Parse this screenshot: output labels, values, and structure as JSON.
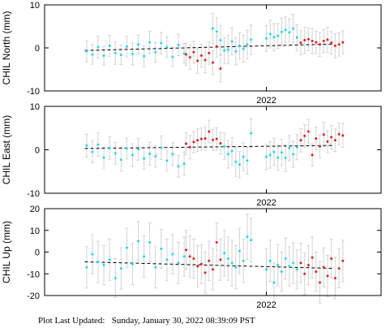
{
  "footer": {
    "label": "Plot Last Updated:",
    "timestamp": "Sunday, January 30, 2022 08:39:09 PST"
  },
  "colors": {
    "cyan": "#22d8ea",
    "red": "#e02020",
    "error_bar": "#d3d3d3",
    "trend": "#000000"
  },
  "chart_data": [
    {
      "type": "scatter",
      "ylabel": "CHIL North (mm)",
      "ylim": [
        -10,
        10
      ],
      "yticks": [
        -10,
        0,
        10
      ],
      "xlim": [
        2021.42,
        2022.3
      ],
      "xticks": [
        2022.0
      ],
      "xtick_labels": [
        "2022"
      ],
      "trend": [
        [
          2021.525,
          -0.6
        ],
        [
          2022.175,
          0.9
        ]
      ],
      "series": [
        {
          "color": "cyan",
          "x": [
            2021.53,
            2021.545,
            2021.56,
            2021.575,
            2021.59,
            2021.605,
            2021.62,
            2021.635,
            2021.65,
            2021.665,
            2021.68,
            2021.695,
            2021.71,
            2021.725,
            2021.74,
            2021.755,
            2021.77,
            2021.785,
            2021.86,
            2021.87,
            2021.88,
            2021.89,
            2021.9,
            2021.91,
            2021.92,
            2021.93,
            2021.94,
            2021.95,
            2021.96,
            2022.0,
            2022.01,
            2022.02,
            2022.03,
            2022.04,
            2022.05,
            2022.06,
            2022.07,
            2022.08
          ],
          "y": [
            -0.8,
            -1.5,
            0.2,
            -1.8,
            0.5,
            -1.2,
            -1.6,
            0.3,
            -1.4,
            0.8,
            -1.9,
            1.3,
            -1.0,
            1.1,
            0.2,
            -2.1,
            0.7,
            -1.3,
            4.5,
            3.8,
            1.8,
            -0.6,
            -0.4,
            1.5,
            -0.8,
            0.5,
            -0.2,
            0.8,
            1.9,
            2.2,
            3.2,
            2.5,
            2.8,
            3.7,
            4.2,
            3.6,
            4.5,
            2.4
          ],
          "err": [
            2.4,
            2.3,
            2.5,
            2.2,
            2.4,
            2.6,
            2.3,
            2.4,
            2.5,
            2.2,
            2.4,
            2.6,
            2.3,
            2.5,
            2.4,
            2.2,
            2.5,
            2.3,
            3.5,
            3.2,
            3.4,
            3.0,
            3.3,
            3.1,
            3.2,
            3.0,
            3.1,
            3.3,
            3.4,
            3.0,
            3.2,
            3.1,
            2.9,
            3.2,
            3.0,
            3.1,
            3.3,
            3.0
          ]
        },
        {
          "color": "red",
          "x": [
            2021.79,
            2021.8,
            2021.81,
            2021.82,
            2021.83,
            2021.84,
            2021.85,
            2021.86,
            2021.87,
            2021.88,
            2022.09,
            2022.1,
            2022.11,
            2022.12,
            2022.13,
            2022.14,
            2022.15,
            2022.16,
            2022.17,
            2022.18,
            2022.19,
            2022.2
          ],
          "y": [
            -1.5,
            -2.2,
            -1.0,
            -3.0,
            -1.8,
            -2.8,
            -1.2,
            -3.4,
            0.3,
            -4.8,
            1.2,
            1.8,
            2.0,
            1.6,
            1.3,
            0.8,
            1.6,
            1.9,
            1.2,
            0.5,
            0.8,
            1.3
          ],
          "err": [
            2.6,
            2.8,
            2.5,
            2.9,
            2.7,
            3.0,
            2.6,
            2.8,
            2.5,
            3.1,
            2.8,
            3.0,
            2.7,
            2.9,
            2.6,
            2.8,
            2.7,
            2.9,
            2.6,
            2.8,
            2.7,
            2.6
          ]
        }
      ]
    },
    {
      "type": "scatter",
      "ylabel": "CHIL East (mm)",
      "ylim": [
        -10,
        10
      ],
      "yticks": [
        -10,
        0,
        10
      ],
      "xlim": [
        2021.42,
        2022.3
      ],
      "xticks": [
        2022.0
      ],
      "xtick_labels": [
        "2022"
      ],
      "trend": [
        [
          2021.525,
          0.3
        ],
        [
          2022.175,
          1.0
        ]
      ],
      "series": [
        {
          "color": "cyan",
          "x": [
            2021.53,
            2021.545,
            2021.56,
            2021.575,
            2021.59,
            2021.605,
            2021.62,
            2021.635,
            2021.65,
            2021.665,
            2021.68,
            2021.695,
            2021.71,
            2021.725,
            2021.74,
            2021.755,
            2021.77,
            2021.785,
            2021.89,
            2021.9,
            2021.91,
            2021.92,
            2021.93,
            2021.94,
            2021.95,
            2021.96,
            2022.0,
            2022.01,
            2022.02,
            2022.03,
            2022.04,
            2022.05,
            2022.06,
            2022.07,
            2022.08
          ],
          "y": [
            1.0,
            -0.5,
            1.2,
            -1.8,
            0.4,
            -0.8,
            -2.3,
            0.3,
            -1.2,
            0.1,
            -2.0,
            -0.9,
            -1.5,
            0.5,
            -2.5,
            -1.0,
            -3.8,
            -3.2,
            0.8,
            -1.0,
            -0.3,
            -2.8,
            -3.4,
            -1.6,
            -2.5,
            3.8,
            -1.6,
            -1.2,
            -0.5,
            -1.8,
            -0.6,
            -1.9,
            0.4,
            -1.0,
            0.6
          ],
          "err": [
            2.6,
            2.5,
            2.7,
            2.4,
            2.6,
            2.5,
            2.7,
            2.4,
            2.6,
            2.5,
            2.4,
            2.6,
            2.5,
            2.7,
            2.4,
            2.6,
            2.5,
            2.7,
            3.0,
            3.2,
            3.1,
            3.3,
            3.0,
            3.2,
            3.1,
            3.3,
            2.9,
            3.0,
            3.1,
            2.9,
            3.0,
            3.1,
            2.9,
            3.0,
            2.9
          ]
        },
        {
          "color": "red",
          "x": [
            2021.79,
            2021.8,
            2021.81,
            2021.82,
            2021.83,
            2021.84,
            2021.85,
            2021.86,
            2021.87,
            2021.88,
            2022.09,
            2022.1,
            2022.11,
            2022.12,
            2022.13,
            2022.14,
            2022.15,
            2022.16,
            2022.17,
            2022.18,
            2022.19,
            2022.2
          ],
          "y": [
            1.4,
            0.6,
            1.8,
            2.2,
            2.5,
            2.6,
            4.2,
            2.3,
            2.5,
            1.5,
            2.2,
            3.2,
            4.2,
            -1.2,
            2.6,
            0.8,
            3.5,
            1.9,
            2.9,
            2.2,
            3.6,
            3.3
          ],
          "err": [
            2.5,
            2.7,
            2.4,
            2.6,
            2.5,
            2.7,
            2.6,
            2.4,
            2.6,
            2.5,
            2.7,
            2.6,
            2.8,
            2.5,
            2.7,
            2.6,
            2.8,
            2.5,
            2.7,
            2.6,
            2.5,
            2.7
          ]
        }
      ]
    },
    {
      "type": "scatter",
      "ylabel": "CHIL Up (mm)",
      "ylim": [
        -20,
        20
      ],
      "yticks": [
        -20,
        -10,
        0,
        10,
        20
      ],
      "xlim": [
        2021.42,
        2022.3
      ],
      "xticks": [
        2022.0
      ],
      "xtick_labels": [
        "2022"
      ],
      "trend": [
        [
          2021.525,
          -4.5
        ],
        [
          2022.175,
          -7.5
        ]
      ],
      "series": [
        {
          "color": "cyan",
          "x": [
            2021.53,
            2021.545,
            2021.56,
            2021.575,
            2021.59,
            2021.605,
            2021.62,
            2021.635,
            2021.65,
            2021.665,
            2021.68,
            2021.695,
            2021.71,
            2021.725,
            2021.74,
            2021.755,
            2021.77,
            2021.785,
            2021.89,
            2021.9,
            2021.91,
            2021.92,
            2021.93,
            2021.94,
            2021.95,
            2021.96,
            2022.0,
            2022.01,
            2022.02,
            2022.03,
            2022.04,
            2022.05,
            2022.06,
            2022.07,
            2022.08
          ],
          "y": [
            -7.0,
            -1.0,
            -4.5,
            -6.0,
            -3.5,
            -12.0,
            -7.5,
            2.0,
            -5.5,
            5.0,
            -2.0,
            4.5,
            -7.0,
            1.5,
            -3.5,
            -1.0,
            -5.0,
            -2.0,
            -0.5,
            -3.0,
            -5.0,
            -7.0,
            0.5,
            -4.0,
            7.0,
            5.5,
            -8.0,
            -4.0,
            -14.0,
            -6.0,
            -9.0,
            -3.0,
            -6.5,
            -5.0,
            -8.0
          ],
          "err": [
            9.5,
            9.0,
            9.5,
            9.0,
            9.5,
            9.0,
            9.5,
            9.0,
            9.5,
            9.0,
            9.5,
            9.0,
            9.5,
            9.0,
            9.5,
            9.0,
            9.5,
            9.0,
            10.5,
            10.0,
            10.5,
            10.0,
            10.5,
            10.0,
            10.5,
            10.0,
            9.5,
            9.5,
            9.0,
            9.5,
            9.0,
            9.5,
            9.0,
            9.5,
            9.0
          ]
        },
        {
          "color": "red",
          "x": [
            2021.79,
            2021.8,
            2021.81,
            2021.82,
            2021.83,
            2021.84,
            2021.85,
            2021.86,
            2021.87,
            2021.88,
            2022.09,
            2022.1,
            2022.11,
            2022.12,
            2022.13,
            2022.14,
            2022.15,
            2022.16,
            2022.17,
            2022.18,
            2022.19,
            2022.2
          ],
          "y": [
            1.0,
            -2.0,
            -3.0,
            -6.5,
            -5.5,
            -9.5,
            -4.0,
            -8.0,
            4.5,
            -3.5,
            -5.0,
            -10.0,
            -6.0,
            -2.5,
            -9.0,
            -14.0,
            -7.0,
            -11.0,
            -3.0,
            -12.0,
            -7.5,
            -4.0
          ],
          "err": [
            9.0,
            9.5,
            9.0,
            9.5,
            9.0,
            9.5,
            9.0,
            9.5,
            9.0,
            9.5,
            9.0,
            9.5,
            9.0,
            9.5,
            9.0,
            9.5,
            9.0,
            9.5,
            9.0,
            9.5,
            9.0,
            9.5
          ]
        }
      ]
    }
  ]
}
